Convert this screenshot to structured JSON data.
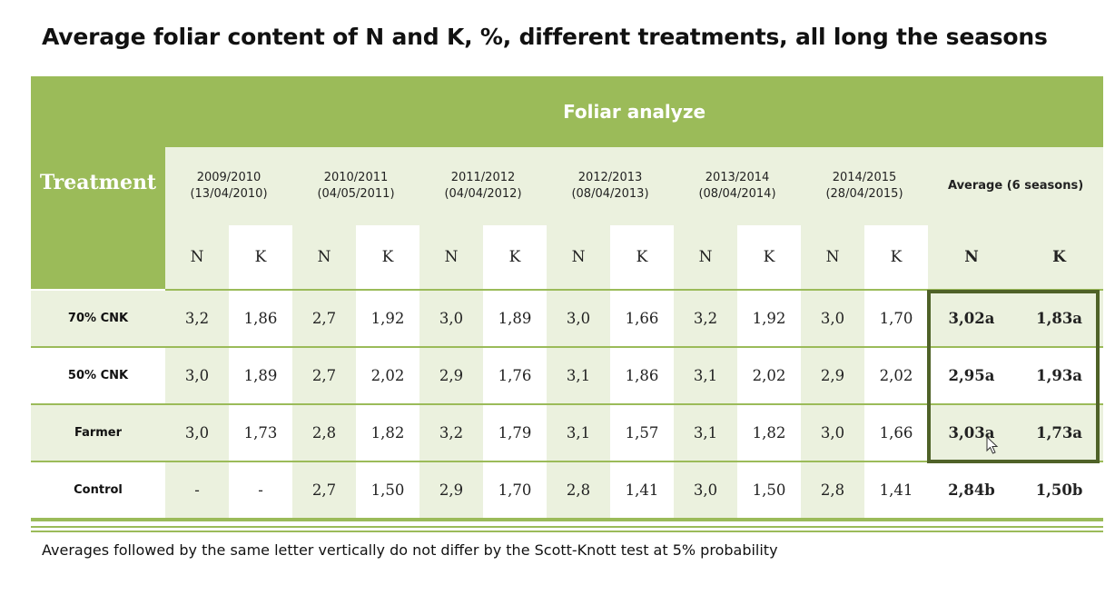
{
  "title": "Average foliar content of N and K, %, different treatments, all long the seasons",
  "table": {
    "treatment_header": "Treatment",
    "group_header": "Foliar analyze",
    "seasons": [
      {
        "label": "2009/2010",
        "date": "(13/04/2010)"
      },
      {
        "label": "2010/2011",
        "date": "(04/05/2011)"
      },
      {
        "label": "2011/2012",
        "date": "(04/04/2012)"
      },
      {
        "label": "2012/2013",
        "date": "(08/04/2013)"
      },
      {
        "label": "2013/2014",
        "date": "(08/04/2014)"
      },
      {
        "label": "2014/2015",
        "date": "(28/04/2015)"
      }
    ],
    "average_header": "Average (6 seasons)",
    "n_label": "N",
    "k_label": "K",
    "rows": [
      {
        "treatment": "70% CNK",
        "values": [
          "3,2",
          "1,86",
          "2,7",
          "1,92",
          "3,0",
          "1,89",
          "3,0",
          "1,66",
          "3,2",
          "1,92",
          "3,0",
          "1,70"
        ],
        "avg_n": "3,02a",
        "avg_k": "1,83a"
      },
      {
        "treatment": "50% CNK",
        "values": [
          "3,0",
          "1,89",
          "2,7",
          "2,02",
          "2,9",
          "1,76",
          "3,1",
          "1,86",
          "3,1",
          "2,02",
          "2,9",
          "2,02"
        ],
        "avg_n": "2,95a",
        "avg_k": "1,93a"
      },
      {
        "treatment": "Farmer",
        "values": [
          "3,0",
          "1,73",
          "2,8",
          "1,82",
          "3,2",
          "1,79",
          "3,1",
          "1,57",
          "3,1",
          "1,82",
          "3,0",
          "1,66"
        ],
        "avg_n": "3,03a",
        "avg_k": "1,73a"
      },
      {
        "treatment": "Control",
        "values": [
          "-",
          "-",
          "2,7",
          "1,50",
          "2,9",
          "1,70",
          "2,8",
          "1,41",
          "3,0",
          "1,50",
          "2,8",
          "1,41"
        ],
        "avg_n": "2,84b",
        "avg_k": "1,50b"
      }
    ]
  },
  "footnote": "Averages followed by the same letter vertically do not differ by the Scott-Knott test at 5% probability",
  "colors": {
    "header_green": "#9bbb59",
    "light_green": "#ebf1de",
    "highlight_border": "#4f6228"
  }
}
